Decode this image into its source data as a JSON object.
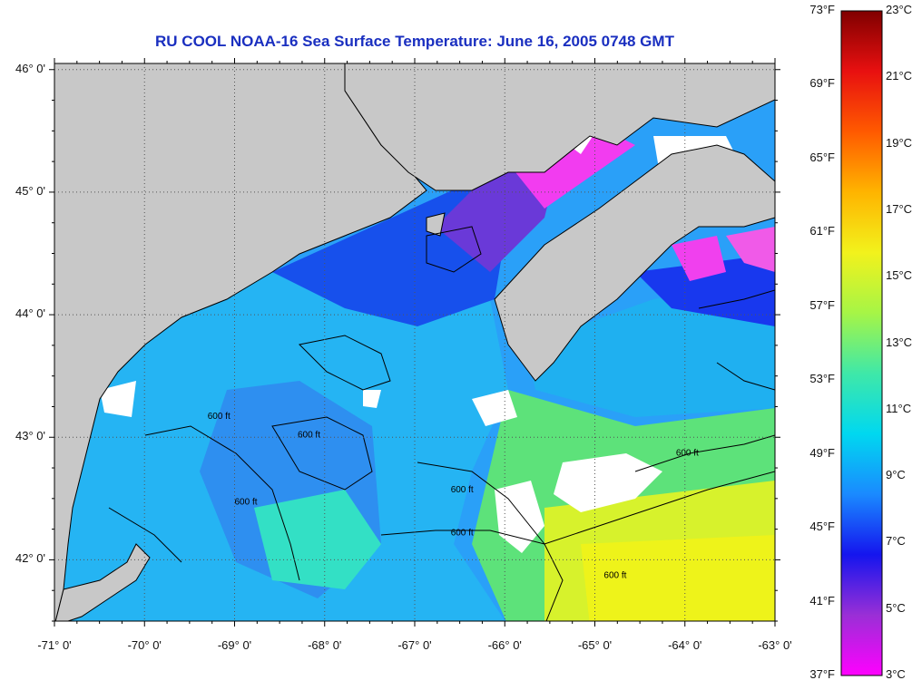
{
  "title": "RU COOL  NOAA-16  Sea Surface Temperature:  June 16, 2005 0748 GMT",
  "map": {
    "lat_range": [
      41.5,
      46.05
    ],
    "lon_range": [
      -71,
      -63
    ],
    "lat_ticks": [
      {
        "value": 46,
        "label": "46° 0'"
      },
      {
        "value": 45,
        "label": "45° 0'"
      },
      {
        "value": 44,
        "label": "44° 0'"
      },
      {
        "value": 43,
        "label": "43° 0'"
      },
      {
        "value": 42,
        "label": "42° 0'"
      }
    ],
    "lon_ticks": [
      {
        "value": -71,
        "label": "-71° 0'"
      },
      {
        "value": -70,
        "label": "-70° 0'"
      },
      {
        "value": -69,
        "label": "-69° 0'"
      },
      {
        "value": -68,
        "label": "-68° 0'"
      },
      {
        "value": -67,
        "label": "-67° 0'"
      },
      {
        "value": -66,
        "label": "-66° 0'"
      },
      {
        "value": -65,
        "label": "-65° 0'"
      },
      {
        "value": -64,
        "label": "-64° 0'"
      },
      {
        "value": -63,
        "label": "-63° 0'"
      }
    ],
    "contour_label": "600 ft",
    "colors": {
      "land": "#c8c8c8",
      "cloud": "#ffffff",
      "grid": "#555555"
    }
  },
  "colorbar": {
    "fahrenheit": [
      "73°F",
      "69°F",
      "65°F",
      "61°F",
      "57°F",
      "53°F",
      "49°F",
      "45°F",
      "41°F",
      "37°F"
    ],
    "celsius": [
      "23°C",
      "21°C",
      "19°C",
      "17°C",
      "15°C",
      "13°C",
      "11°C",
      "9°C",
      "7°C",
      "5°C",
      "3°C"
    ],
    "gradient": [
      "#ff00ff",
      "#9a2fd6",
      "#1515ee",
      "#1a8aff",
      "#00d8f0",
      "#3fe8a8",
      "#a6f546",
      "#f2f21c",
      "#ffb400",
      "#ff5a00",
      "#e81010",
      "#800000"
    ]
  }
}
